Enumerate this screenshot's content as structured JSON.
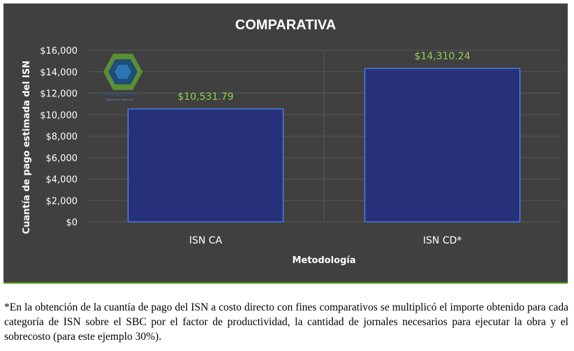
{
  "chart_data": {
    "type": "bar",
    "title": "COMPARATIVA",
    "xlabel": "Metodología",
    "ylabel": "Cuantía de pago estimada del ISN",
    "categories": [
      "ISN CA",
      "ISN CD*"
    ],
    "values": [
      10531.79,
      14310.24
    ],
    "data_labels": [
      "$10,531.79",
      "$14,310.24"
    ],
    "ylim": [
      0,
      16000
    ],
    "yticks": [
      0,
      2000,
      4000,
      6000,
      8000,
      10000,
      12000,
      14000,
      16000
    ],
    "ytick_labels": [
      "$0",
      "$2,000",
      "$4,000",
      "$6,000",
      "$8,000",
      "$10,000",
      "$12,000",
      "$14,000",
      "$16,000"
    ],
    "grid": true,
    "colors": {
      "background": "#404040",
      "bar": "#27317a",
      "bar_edge": "#4a7ee0",
      "data_label": "#92d050",
      "text": "#ffffff",
      "grid": "#595959"
    }
  },
  "logo": {
    "text": "El Precio Unitario",
    "subtext": "Soluciones de Ingeniería"
  },
  "footnote": "*En la obtención de la cuantía de pago del ISN a costo directo con fines comparativos se multiplicó el importe obtenido para cada categoría de ISN sobre el SBC por el factor de productividad, la cantidad de jornales necesarios para ejecutar la obra y el sobrecosto (para este ejemplo 30%)."
}
